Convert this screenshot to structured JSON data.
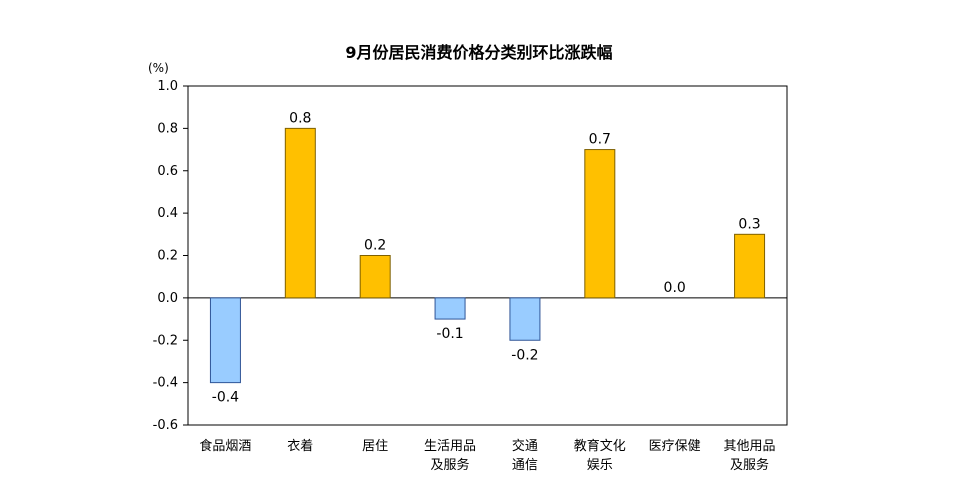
{
  "chart_data": {
    "type": "bar",
    "title": "9月份居民消费价格分类别环比涨跌幅",
    "unit_label": "(%)",
    "categories": [
      [
        "食品烟酒"
      ],
      [
        "衣着"
      ],
      [
        "居住"
      ],
      [
        "生活用品",
        "及服务"
      ],
      [
        "交通",
        "通信"
      ],
      [
        "教育文化",
        "娱乐"
      ],
      [
        "医疗保健"
      ],
      [
        "其他用品",
        "及服务"
      ]
    ],
    "values": [
      -0.4,
      0.8,
      0.2,
      -0.1,
      -0.2,
      0.7,
      0.0,
      0.3
    ],
    "value_labels": [
      "-0.4",
      "0.8",
      "0.2",
      "-0.1",
      "-0.2",
      "0.7",
      "0.0",
      "0.3"
    ],
    "ylim": [
      -0.6,
      1.0
    ],
    "yticks": [
      "1.0",
      "0.8",
      "0.6",
      "0.4",
      "0.2",
      "0.0",
      "-0.2",
      "-0.4",
      "-0.6"
    ],
    "ytick_values": [
      1.0,
      0.8,
      0.6,
      0.4,
      0.2,
      0.0,
      -0.2,
      -0.4,
      -0.6
    ],
    "grid": false,
    "legend": "none",
    "colors": {
      "positive_fill": "#FFC000",
      "positive_stroke": "#7F6000",
      "negative_fill": "#99CCFF",
      "negative_stroke": "#2F5597",
      "axis": "#000000"
    }
  }
}
